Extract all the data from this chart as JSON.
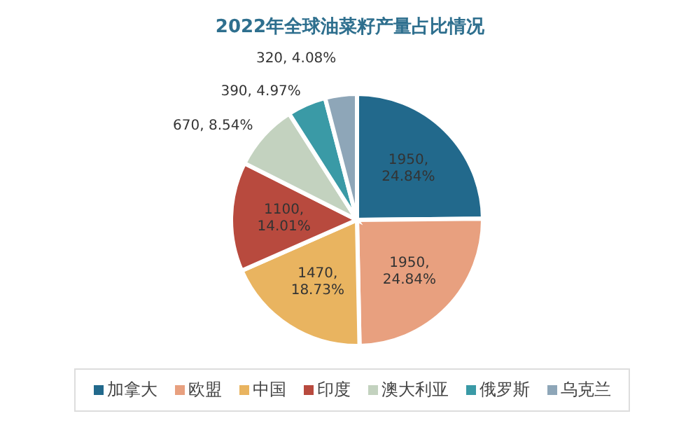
{
  "chart_data": {
    "type": "pie",
    "title": "2022年全球油菜籽产量占比情况",
    "categories": [
      "加拿大",
      "欧盟",
      "中国",
      "印度",
      "澳大利亚",
      "俄罗斯",
      "乌克兰"
    ],
    "values": [
      1950,
      1950,
      1470,
      1100,
      670,
      390,
      320
    ],
    "value_labels": [
      "1950, 24.84%",
      "1950, 24.84%",
      "1470, 18.73%",
      "1100, 14.01%",
      "670, 8.54%",
      "390, 4.97%",
      "320, 4.08%"
    ],
    "colors": [
      "#22698c",
      "#e8a07f",
      "#e9b460",
      "#b84a3e",
      "#c3d2bf",
      "#3a9aa6",
      "#8ea6b8"
    ],
    "legend": "bottom"
  }
}
